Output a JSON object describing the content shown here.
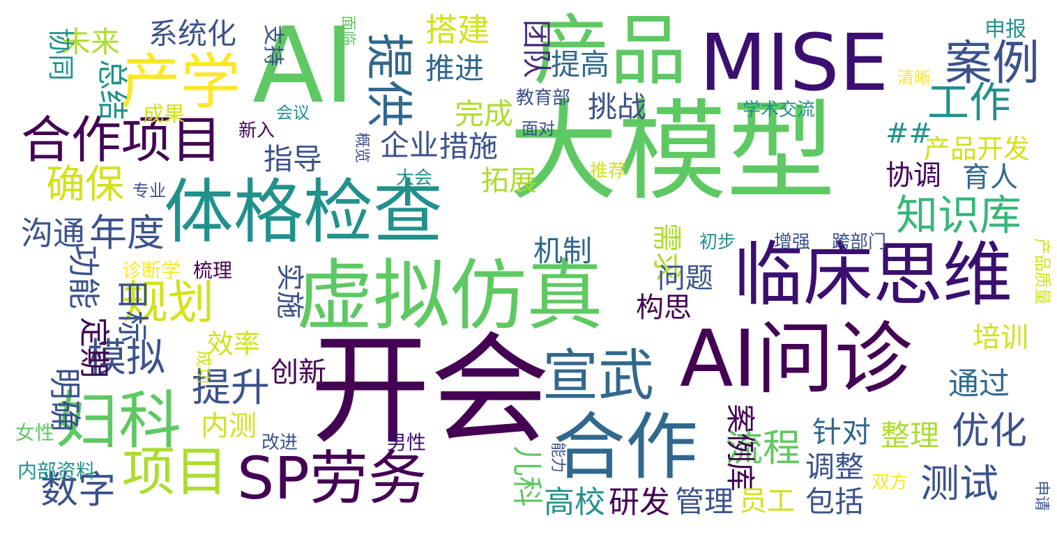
{
  "words": [
    {
      "text": "大模型",
      "color": "#5ec962"
    },
    {
      "text": "开会",
      "color": "#440154"
    },
    {
      "text": "AI",
      "color": "#5ec962"
    },
    {
      "text": "MISE",
      "color": "#3b0f70"
    },
    {
      "text": "虚拟仿真",
      "color": "#5ec962"
    },
    {
      "text": "临床思维",
      "color": "#3b0f70"
    },
    {
      "text": "AI问诊",
      "color": "#440154"
    },
    {
      "text": "体格检查",
      "color": "#21918c"
    },
    {
      "text": "产品",
      "color": "#5ec962"
    },
    {
      "text": "产学",
      "color": "#fde725"
    },
    {
      "text": "合作",
      "color": "#31688e"
    },
    {
      "text": "SP劳务",
      "color": "#440154"
    },
    {
      "text": "合作项目",
      "color": "#440154"
    },
    {
      "text": "妇科",
      "color": "#5ec962"
    },
    {
      "text": "项目",
      "color": "#addc30"
    },
    {
      "text": "宣武",
      "color": "#31688e"
    },
    {
      "text": "提供",
      "color": "#31688e"
    },
    {
      "text": "案例",
      "color": "#3b528b"
    },
    {
      "text": "工作",
      "color": "#21918c"
    },
    {
      "text": "知识库",
      "color": "#35b779"
    },
    {
      "text": "规划",
      "color": "#d2e21b"
    },
    {
      "text": "确保",
      "color": "#d2e21b"
    },
    {
      "text": "优化",
      "color": "#3b528b"
    },
    {
      "text": "测试",
      "color": "#3b528b"
    },
    {
      "text": "提升",
      "color": "#3b528b"
    },
    {
      "text": "数字",
      "color": "#3b528b"
    },
    {
      "text": "年度",
      "color": "#3b528b"
    },
    {
      "text": "模拟",
      "color": "#3b528b"
    },
    {
      "text": "流程",
      "color": "#5ec962"
    },
    {
      "text": "系统化",
      "color": "#3b528b"
    },
    {
      "text": "未来",
      "color": "#addc30"
    },
    {
      "text": "搭建",
      "color": "#d2e21b"
    },
    {
      "text": "推进",
      "color": "#31688e"
    },
    {
      "text": "团队",
      "color": "#472d7b"
    },
    {
      "text": "提高",
      "color": "#31688e"
    },
    {
      "text": "挑战",
      "color": "#3b528b"
    },
    {
      "text": "完成",
      "color": "#addc30"
    },
    {
      "text": "企业",
      "color": "#3b528b"
    },
    {
      "text": "措施",
      "color": "#3b528b"
    },
    {
      "text": "指导",
      "color": "#3b528b"
    },
    {
      "text": "拓展",
      "color": "#addc30"
    },
    {
      "text": "协调",
      "color": "#440154"
    },
    {
      "text": "育人",
      "color": "#31688e"
    },
    {
      "text": "机制",
      "color": "#31688e"
    },
    {
      "text": "需求",
      "color": "#addc30"
    },
    {
      "text": "问题",
      "color": "#3b528b"
    },
    {
      "text": "构思",
      "color": "#440154"
    },
    {
      "text": "实施",
      "color": "#3b528b"
    },
    {
      "text": "效率",
      "color": "#d2e21b"
    },
    {
      "text": "培训",
      "color": "#d2e21b"
    },
    {
      "text": "通过",
      "color": "#31688e"
    },
    {
      "text": "创新",
      "color": "#440154"
    },
    {
      "text": "内测",
      "color": "#d2e21b"
    },
    {
      "text": "针对",
      "color": "#31688e"
    },
    {
      "text": "整理",
      "color": "#addc30"
    },
    {
      "text": "调整",
      "color": "#3b528b"
    },
    {
      "text": "案例库",
      "color": "#440154"
    },
    {
      "text": "高校",
      "color": "#21918c"
    },
    {
      "text": "研发",
      "color": "#440154"
    },
    {
      "text": "管理",
      "color": "#3b528b"
    },
    {
      "text": "员工",
      "color": "#d2e21b"
    },
    {
      "text": "包括",
      "color": "#3b528b"
    },
    {
      "text": "儿科",
      "color": "#5ec962"
    },
    {
      "text": "沟通",
      "color": "#3b528b"
    },
    {
      "text": "功能",
      "color": "#3b528b"
    },
    {
      "text": "目标",
      "color": "#3b528b"
    },
    {
      "text": "定期",
      "color": "#440154"
    },
    {
      "text": "明确",
      "color": "#3b528b"
    },
    {
      "text": "总结",
      "color": "#21918c"
    },
    {
      "text": "协同",
      "color": "#21918c"
    },
    {
      "text": "##",
      "color": "#21918c"
    },
    {
      "text": "产品开发",
      "color": "#d2e21b"
    },
    {
      "text": "申报",
      "color": "#21918c"
    },
    {
      "text": "清晰",
      "color": "#fde725"
    },
    {
      "text": "学术交流",
      "color": "#21918c"
    },
    {
      "text": "教育部",
      "color": "#3b528b"
    },
    {
      "text": "面对",
      "color": "#3b528b"
    },
    {
      "text": "推荐",
      "color": "#d2e21b"
    },
    {
      "text": "大会",
      "color": "#21918c"
    },
    {
      "text": "面临",
      "color": "#5ec962"
    },
    {
      "text": "支持",
      "color": "#3b528b"
    },
    {
      "text": "成果",
      "color": "#d2e21b"
    },
    {
      "text": "会议",
      "color": "#21918c"
    },
    {
      "text": "新入",
      "color": "#440154"
    },
    {
      "text": "概览",
      "color": "#3b528b"
    },
    {
      "text": "专业",
      "color": "#3b528b"
    },
    {
      "text": "诊断学",
      "color": "#fde725"
    },
    {
      "text": "梳理",
      "color": "#440154"
    },
    {
      "text": "初步",
      "color": "#21918c"
    },
    {
      "text": "增强",
      "color": "#3b528b"
    },
    {
      "text": "跨部门",
      "color": "#3b528b"
    },
    {
      "text": "产品质量",
      "color": "#d2e21b"
    },
    {
      "text": "成功",
      "color": "#d2e21b"
    },
    {
      "text": "女性",
      "color": "#5ec962"
    },
    {
      "text": "改进",
      "color": "#3b528b"
    },
    {
      "text": "男性",
      "color": "#3b0f70"
    },
    {
      "text": "内部资料",
      "color": "#21918c"
    },
    {
      "text": "能力",
      "color": "#3b528b"
    },
    {
      "text": "双方",
      "color": "#fde725"
    },
    {
      "text": "申请",
      "color": "#3b528b"
    }
  ]
}
